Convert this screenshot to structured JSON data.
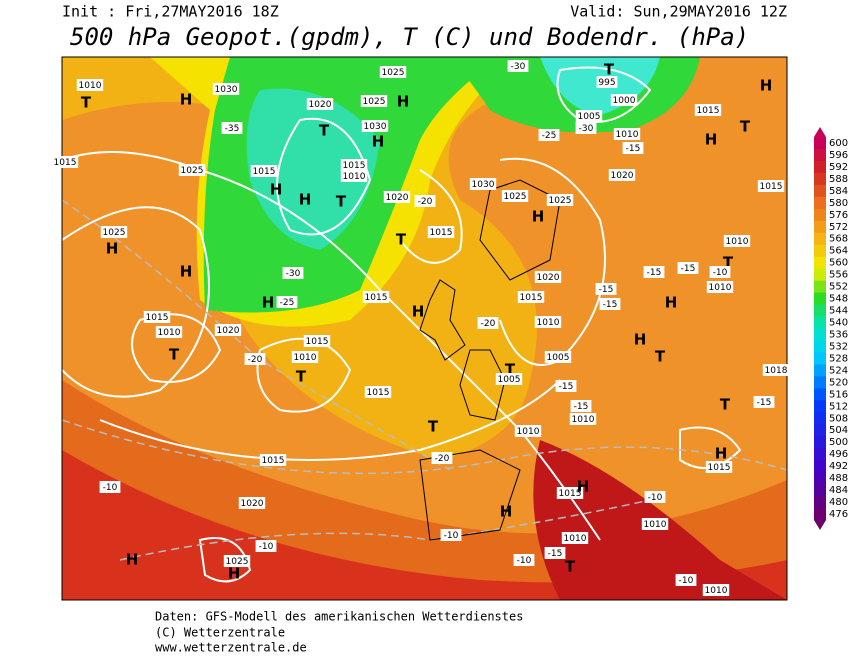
{
  "header": {
    "init": "Init : Fri,27MAY2016 18Z",
    "valid": "Valid: Sun,29MAY2016 12Z",
    "title": "500 hPa Geopot.(gpdm), T (C) und Bodendr. (hPa)"
  },
  "colorbar": {
    "levels": [
      600,
      596,
      592,
      588,
      584,
      580,
      576,
      572,
      568,
      564,
      560,
      556,
      552,
      548,
      544,
      540,
      536,
      532,
      528,
      524,
      520,
      516,
      512,
      508,
      504,
      500,
      496,
      492,
      488,
      484,
      480,
      476
    ]
  },
  "map_labels": [
    "1010",
    "T",
    "H",
    "1030",
    "1020",
    "1025",
    "1025",
    "H",
    "T",
    "1030",
    "H",
    "-35",
    "1015",
    "1025",
    "1015",
    "1015",
    "1010",
    "H",
    "H",
    "T",
    "1020",
    "-20",
    "1030",
    "1025",
    "H",
    "1025",
    "T",
    "1015",
    "1025",
    "H",
    "H",
    "-30",
    "1015",
    "H",
    "-25",
    "1015",
    "1010",
    "T",
    "1020",
    "-20",
    "1015",
    "1010",
    "T",
    "H",
    "-20",
    "1020",
    "1015",
    "1010",
    "1005",
    "T",
    "1005",
    "H",
    "T",
    "1015",
    "T",
    "1010",
    "1015",
    "-20",
    "-10",
    "1020",
    "H",
    "-10",
    "1010",
    "1015",
    "H",
    "-10",
    "1010",
    "-15",
    "-10",
    "T",
    "H",
    "-10",
    "1025",
    "H",
    "-10",
    "1010",
    "H",
    "1015",
    "1015",
    "H",
    "T",
    "H",
    "-30",
    "T",
    "995",
    "1000",
    "1005",
    "-30",
    "1010",
    "-15",
    "1020",
    "-25",
    "1010",
    "T",
    "-15",
    "-15",
    "-10",
    "1010",
    "-15",
    "-15",
    "H",
    "-15",
    "1010",
    "-15",
    "T",
    "-15",
    "1018",
    "1015"
  ],
  "footer": [
    "Daten: GFS-Modell des amerikanischen Wetterdienstes",
    "(C) Wetterzentrale",
    "www.wetterzentrale.de"
  ]
}
